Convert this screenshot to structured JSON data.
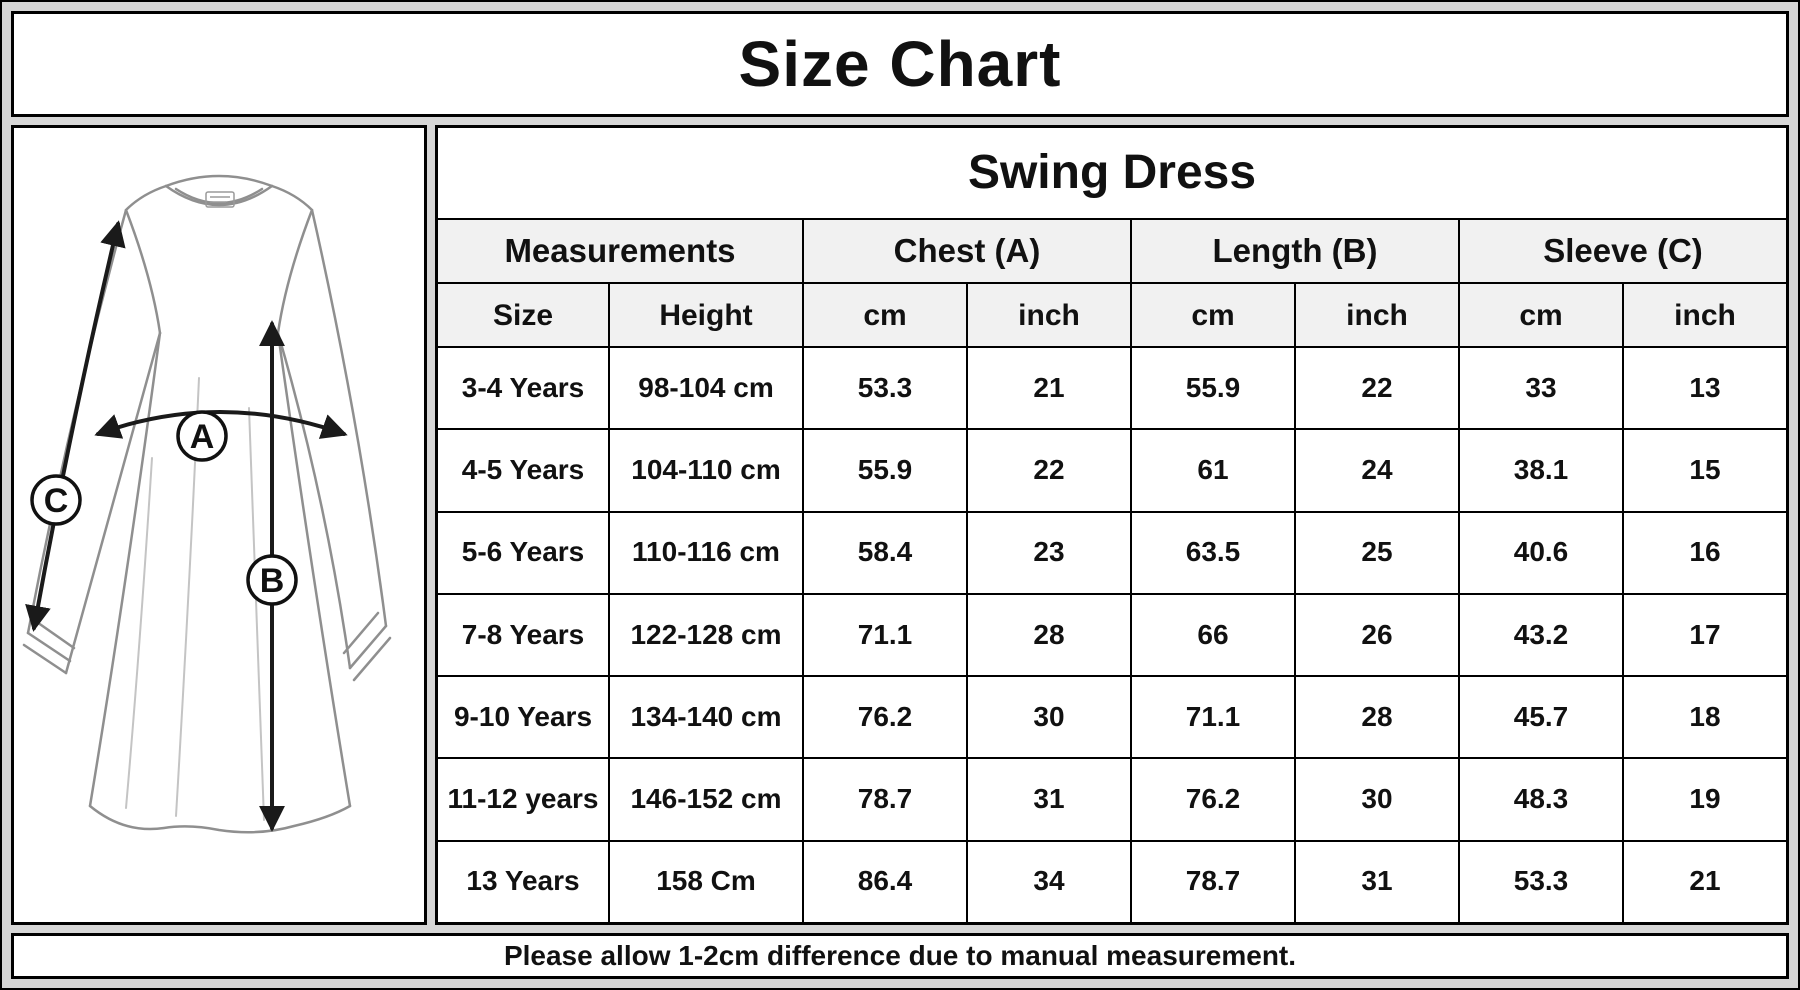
{
  "title": "Size Chart",
  "product_title": "Swing Dress",
  "note": "Please allow 1-2cm difference due to manual measurement.",
  "diagram": {
    "chest_label": "A",
    "length_label": "B",
    "sleeve_label": "C"
  },
  "table": {
    "group_headers": [
      "Measurements",
      "Chest (A)",
      "Length (B)",
      "Sleeve (C)"
    ],
    "column_headers": [
      "Size",
      "Height",
      "cm",
      "inch",
      "cm",
      "inch",
      "cm",
      "inch"
    ],
    "rows": [
      [
        "3-4 Years",
        "98-104 cm",
        "53.3",
        "21",
        "55.9",
        "22",
        "33",
        "13"
      ],
      [
        "4-5 Years",
        "104-110 cm",
        "55.9",
        "22",
        "61",
        "24",
        "38.1",
        "15"
      ],
      [
        "5-6 Years",
        "110-116 cm",
        "58.4",
        "23",
        "63.5",
        "25",
        "40.6",
        "16"
      ],
      [
        "7-8 Years",
        "122-128 cm",
        "71.1",
        "28",
        "66",
        "26",
        "43.2",
        "17"
      ],
      [
        "9-10 Years",
        "134-140 cm",
        "76.2",
        "30",
        "71.1",
        "28",
        "45.7",
        "18"
      ],
      [
        "11-12 years",
        "146-152 cm",
        "78.7",
        "31",
        "76.2",
        "30",
        "48.3",
        "19"
      ],
      [
        "13 Years",
        "158 Cm",
        "86.4",
        "34",
        "78.7",
        "31",
        "53.3",
        "21"
      ]
    ]
  },
  "colors": {
    "background": "#d6d6d6",
    "panel": "#ffffff",
    "border": "#000000",
    "header_fill": "#f1f1f1",
    "text": "#111111"
  }
}
